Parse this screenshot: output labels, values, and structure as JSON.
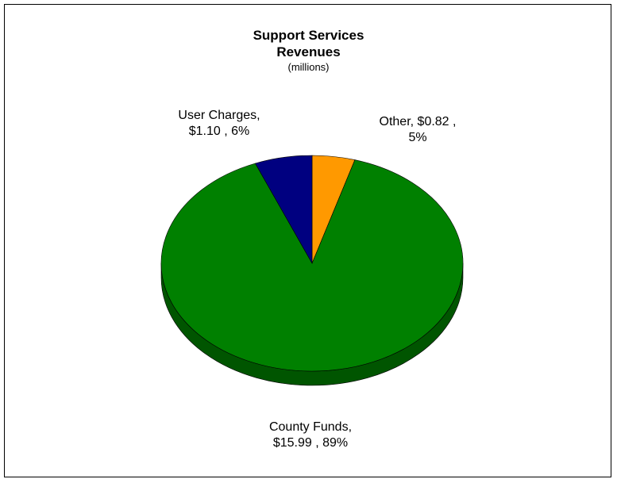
{
  "chart_data": {
    "type": "pie",
    "title_lines": [
      "Support Services",
      "Revenues"
    ],
    "subtitle": "(millions)",
    "slices": [
      {
        "label": "County Funds",
        "value": 15.99,
        "percent": 89,
        "value_text": "$15.99",
        "percent_text": "89%",
        "color": "#008000",
        "side_color": "#005500"
      },
      {
        "label": "User Charges",
        "value": 1.1,
        "percent": 6,
        "value_text": "$1.10",
        "percent_text": "6%",
        "color": "#000080",
        "side_color": "#00004d"
      },
      {
        "label": "Other",
        "value": 0.82,
        "percent": 5,
        "value_text": "$0.82",
        "percent_text": "5%",
        "color": "#ff9900",
        "side_color": "#b36b00"
      }
    ]
  },
  "labels": {
    "county": {
      "line1": "County Funds,",
      "line2": "$15.99 , 89%"
    },
    "user": {
      "line1": "User Charges,",
      "line2": "$1.10 , 6%"
    },
    "other": {
      "line1": "Other,  $0.82 ,",
      "line2": "5%"
    }
  }
}
